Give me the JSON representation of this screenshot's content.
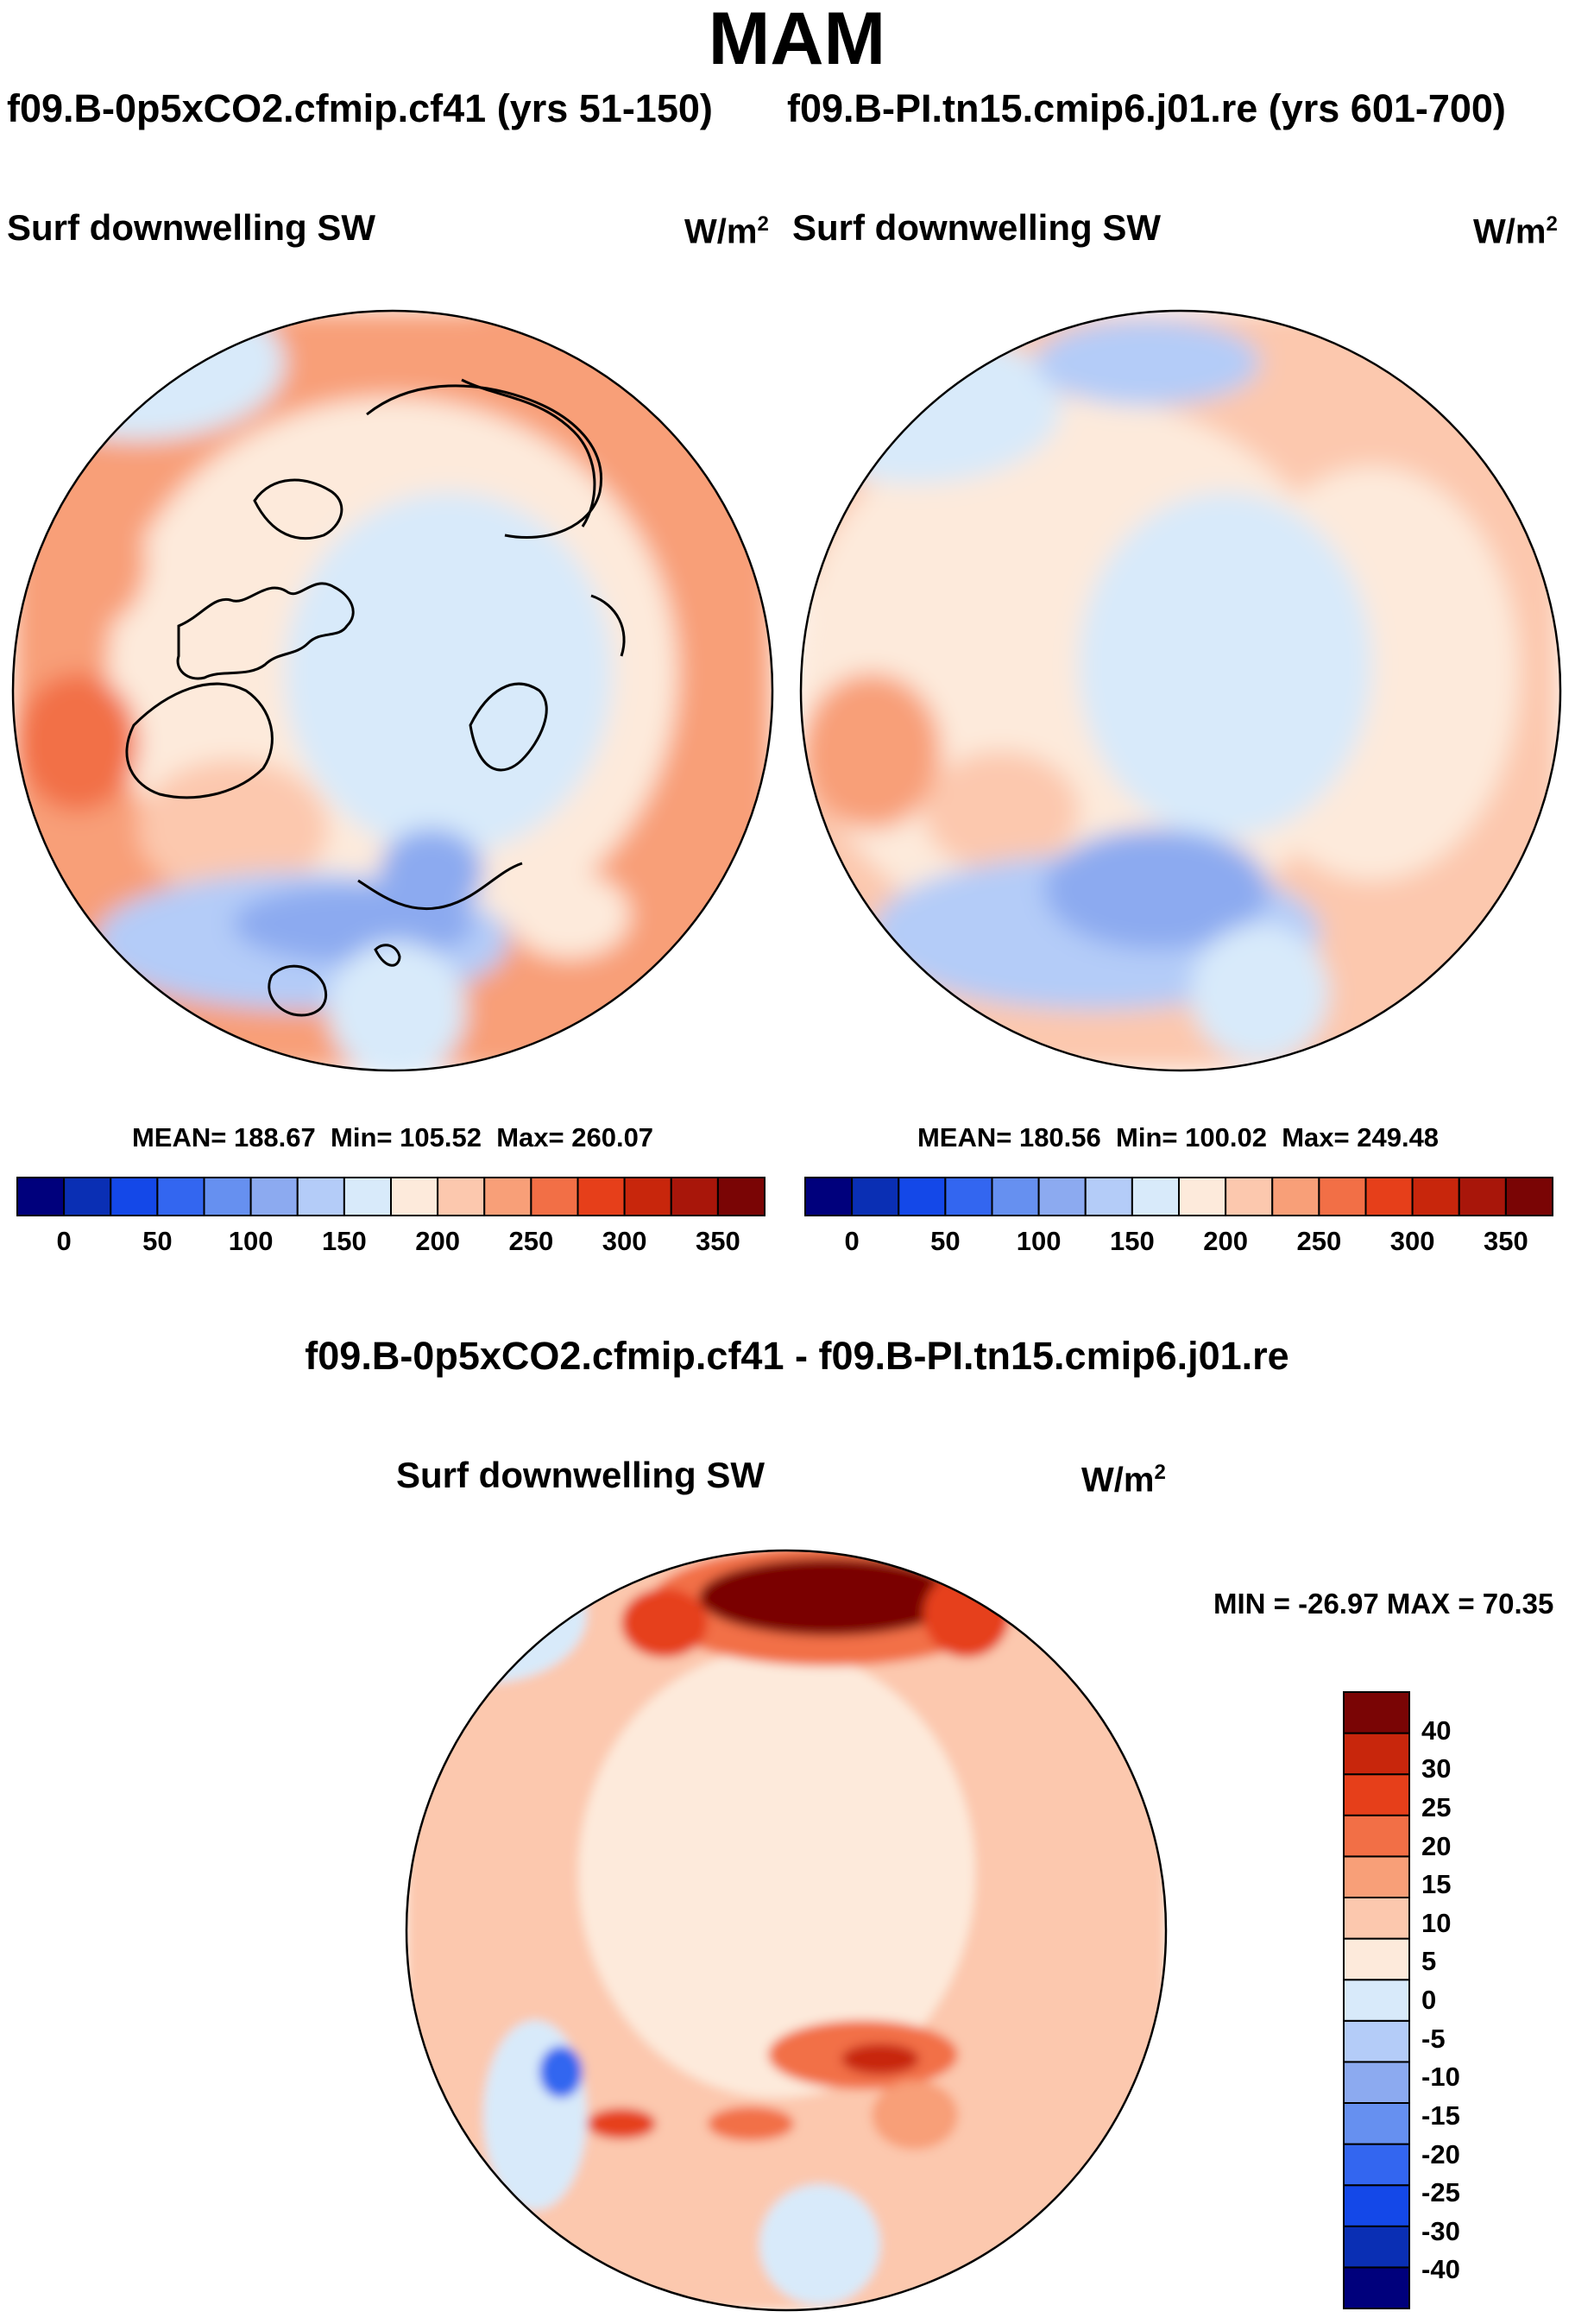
{
  "title": "MAM",
  "panels": [
    {
      "case_title": "f09.B-0p5xCO2.cfmip.cf41 (yrs 51-150)",
      "variable_label": "Surf downwelling SW",
      "units": "W/m",
      "units_sup": "2",
      "stats": {
        "mean_label": "MEAN=",
        "mean": "188.67",
        "min_label": "Min=",
        "min": "105.52",
        "max_label": "Max=",
        "max": "260.07"
      }
    },
    {
      "case_title": "f09.B-PI.tn15.cmip6.j01.re (yrs 601-700)",
      "variable_label": "Surf downwelling SW",
      "units": "W/m",
      "units_sup": "2",
      "stats": {
        "mean_label": "MEAN=",
        "mean": "180.56",
        "min_label": "Min=",
        "min": "100.02",
        "max_label": "Max=",
        "max": "249.48"
      }
    }
  ],
  "difference": {
    "title": "f09.B-0p5xCO2.cfmip.cf41 - f09.B-PI.tn15.cmip6.j01.re",
    "variable_label": "Surf downwelling SW",
    "units": "W/m",
    "units_sup": "2",
    "minmax": "MIN = -26.97 MAX =  70.35"
  },
  "colorbars": {
    "absolute": {
      "colors": [
        "#00007c",
        "#0a2fb4",
        "#1448e8",
        "#3366f0",
        "#6690f0",
        "#8caaf0",
        "#b4ccf8",
        "#d8eafa",
        "#fdeadb",
        "#fcc8ae",
        "#f89f78",
        "#f26f46",
        "#e63f1a",
        "#c8260c",
        "#a8160a",
        "#7a0505"
      ],
      "tick_labels": [
        "0",
        "50",
        "100",
        "150",
        "200",
        "250",
        "300",
        "350"
      ]
    },
    "difference": {
      "colors": [
        "#00007c",
        "#0a2fb4",
        "#1448e8",
        "#3366f0",
        "#6690f0",
        "#8caaf0",
        "#b4ccf8",
        "#d8eafa",
        "#fdeadb",
        "#fcc8ae",
        "#f89f78",
        "#f26f46",
        "#e63f1a",
        "#c8260c",
        "#7a0505"
      ],
      "tick_labels": [
        "40",
        "30",
        "25",
        "20",
        "15",
        "10",
        "5",
        "0",
        "-5",
        "-10",
        "-15",
        "-20",
        "-25",
        "-30",
        "-40"
      ]
    }
  }
}
